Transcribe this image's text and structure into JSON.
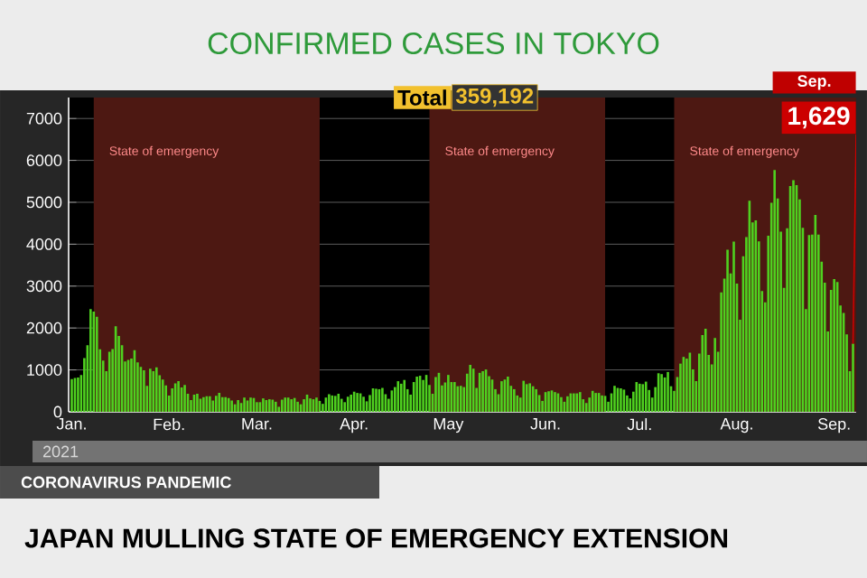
{
  "chart_data": {
    "type": "bar",
    "title": "CONFIRMED CASES IN TOKYO",
    "subtitle": "JAPAN MULLING STATE OF EMERGENCY EXTENSION",
    "annotations": [
      "Total",
      "359,192",
      "Sep.",
      {
        "text": "1,629",
        "x": "2021-09-07",
        "y": 1629
      },
      "2021",
      "CORONAVIRUS PANDEMIC"
    ],
    "color": "#4fd11f",
    "x": [
      "2021-01-01",
      "2021-01-02",
      "2021-01-03",
      "2021-01-04",
      "2021-01-05",
      "2021-01-06",
      "2021-01-07",
      "2021-01-08",
      "2021-01-09",
      "2021-01-10",
      "2021-01-11",
      "2021-01-12",
      "2021-01-13",
      "2021-01-14",
      "2021-01-15",
      "2021-01-16",
      "2021-01-17",
      "2021-01-18",
      "2021-01-19",
      "2021-01-20",
      "2021-01-21",
      "2021-01-22",
      "2021-01-23",
      "2021-01-24",
      "2021-01-25",
      "2021-01-26",
      "2021-01-27",
      "2021-01-28",
      "2021-01-29",
      "2021-01-30",
      "2021-01-31",
      "2021-02-01",
      "2021-02-02",
      "2021-02-03",
      "2021-02-04",
      "2021-02-05",
      "2021-02-06",
      "2021-02-07",
      "2021-02-08",
      "2021-02-09",
      "2021-02-10",
      "2021-02-11",
      "2021-02-12",
      "2021-02-13",
      "2021-02-14",
      "2021-02-15",
      "2021-02-16",
      "2021-02-17",
      "2021-02-18",
      "2021-02-19",
      "2021-02-20",
      "2021-02-21",
      "2021-02-22",
      "2021-02-23",
      "2021-02-24",
      "2021-02-25",
      "2021-02-26",
      "2021-02-27",
      "2021-02-28",
      "2021-03-01",
      "2021-03-02",
      "2021-03-03",
      "2021-03-04",
      "2021-03-05",
      "2021-03-06",
      "2021-03-07",
      "2021-03-08",
      "2021-03-09",
      "2021-03-10",
      "2021-03-11",
      "2021-03-12",
      "2021-03-13",
      "2021-03-14",
      "2021-03-15",
      "2021-03-16",
      "2021-03-17",
      "2021-03-18",
      "2021-03-19",
      "2021-03-20",
      "2021-03-21",
      "2021-03-22",
      "2021-03-23",
      "2021-03-24",
      "2021-03-25",
      "2021-03-26",
      "2021-03-27",
      "2021-03-28",
      "2021-03-29",
      "2021-03-30",
      "2021-03-31",
      "2021-04-01",
      "2021-04-02",
      "2021-04-03",
      "2021-04-04",
      "2021-04-05",
      "2021-04-06",
      "2021-04-07",
      "2021-04-08",
      "2021-04-09",
      "2021-04-10",
      "2021-04-11",
      "2021-04-12",
      "2021-04-13",
      "2021-04-14",
      "2021-04-15",
      "2021-04-16",
      "2021-04-17",
      "2021-04-18",
      "2021-04-19",
      "2021-04-20",
      "2021-04-21",
      "2021-04-22",
      "2021-04-23",
      "2021-04-24",
      "2021-04-25",
      "2021-04-26",
      "2021-04-27",
      "2021-04-28",
      "2021-04-29",
      "2021-04-30",
      "2021-05-01",
      "2021-05-02",
      "2021-05-03",
      "2021-05-04",
      "2021-05-05",
      "2021-05-06",
      "2021-05-07",
      "2021-05-08",
      "2021-05-09",
      "2021-05-10",
      "2021-05-11",
      "2021-05-12",
      "2021-05-13",
      "2021-05-14",
      "2021-05-15",
      "2021-05-16",
      "2021-05-17",
      "2021-05-18",
      "2021-05-19",
      "2021-05-20",
      "2021-05-21",
      "2021-05-22",
      "2021-05-23",
      "2021-05-24",
      "2021-05-25",
      "2021-05-26",
      "2021-05-27",
      "2021-05-28",
      "2021-05-29",
      "2021-05-30",
      "2021-05-31",
      "2021-06-01",
      "2021-06-02",
      "2021-06-03",
      "2021-06-04",
      "2021-06-05",
      "2021-06-06",
      "2021-06-07",
      "2021-06-08",
      "2021-06-09",
      "2021-06-10",
      "2021-06-11",
      "2021-06-12",
      "2021-06-13",
      "2021-06-14",
      "2021-06-15",
      "2021-06-16",
      "2021-06-17",
      "2021-06-18",
      "2021-06-19",
      "2021-06-20",
      "2021-06-21",
      "2021-06-22",
      "2021-06-23",
      "2021-06-24",
      "2021-06-25",
      "2021-06-26",
      "2021-06-27",
      "2021-06-28",
      "2021-06-29",
      "2021-06-30",
      "2021-07-01",
      "2021-07-02",
      "2021-07-03",
      "2021-07-04",
      "2021-07-05",
      "2021-07-06",
      "2021-07-07",
      "2021-07-08",
      "2021-07-09",
      "2021-07-10",
      "2021-07-11",
      "2021-07-12",
      "2021-07-13",
      "2021-07-14",
      "2021-07-15",
      "2021-07-16",
      "2021-07-17",
      "2021-07-18",
      "2021-07-19",
      "2021-07-20",
      "2021-07-21",
      "2021-07-22",
      "2021-07-23",
      "2021-07-24",
      "2021-07-25",
      "2021-07-26",
      "2021-07-27",
      "2021-07-28",
      "2021-07-29",
      "2021-07-30",
      "2021-07-31",
      "2021-08-01",
      "2021-08-02",
      "2021-08-03",
      "2021-08-04",
      "2021-08-05",
      "2021-08-06",
      "2021-08-07",
      "2021-08-08",
      "2021-08-09",
      "2021-08-10",
      "2021-08-11",
      "2021-08-12",
      "2021-08-13",
      "2021-08-14",
      "2021-08-15",
      "2021-08-16",
      "2021-08-17",
      "2021-08-18",
      "2021-08-19",
      "2021-08-20",
      "2021-08-21",
      "2021-08-22",
      "2021-08-23",
      "2021-08-24",
      "2021-08-25",
      "2021-08-26",
      "2021-08-27",
      "2021-08-28",
      "2021-08-29",
      "2021-08-30",
      "2021-08-31",
      "2021-09-01",
      "2021-09-02",
      "2021-09-03",
      "2021-09-04",
      "2021-09-05",
      "2021-09-06",
      "2021-09-07"
    ],
    "values": [
      780,
      810,
      820,
      880,
      1280,
      1590,
      2450,
      2390,
      2270,
      1490,
      1220,
      970,
      1430,
      1500,
      2040,
      1810,
      1590,
      1200,
      1240,
      1270,
      1470,
      1180,
      1070,
      990,
      620,
      1030,
      970,
      1060,
      870,
      770,
      630,
      390,
      560,
      680,
      730,
      580,
      640,
      430,
      280,
      410,
      430,
      310,
      350,
      370,
      370,
      270,
      380,
      450,
      350,
      350,
      330,
      270,
      180,
      280,
      210,
      340,
      270,
      340,
      330,
      230,
      230,
      320,
      280,
      300,
      290,
      240,
      120,
      290,
      340,
      340,
      300,
      330,
      240,
      180,
      300,
      410,
      320,
      300,
      340,
      260,
      190,
      340,
      420,
      390,
      380,
      430,
      310,
      230,
      360,
      410,
      480,
      450,
      440,
      360,
      250,
      400,
      560,
      550,
      540,
      570,
      420,
      310,
      510,
      590,
      730,
      670,
      760,
      540,
      410,
      710,
      840,
      860,
      760,
      880,
      640,
      430,
      830,
      930,
      630,
      700,
      880,
      710,
      710,
      610,
      620,
      590,
      910,
      1120,
      1030,
      570,
      930,
      970,
      1010,
      850,
      770,
      540,
      420,
      730,
      770,
      840,
      620,
      540,
      390,
      340,
      740,
      660,
      680,
      610,
      540,
      400,
      260,
      470,
      490,
      510,
      470,
      440,
      350,
      240,
      370,
      440,
      440,
      440,
      470,
      300,
      210,
      340,
      500,
      450,
      450,
      390,
      380,
      240,
      440,
      620,
      570,
      560,
      530,
      390,
      320,
      480,
      710,
      670,
      660,
      720,
      520,
      340,
      590,
      920,
      900,
      820,
      950,
      610,
      500,
      830,
      1150,
      1310,
      1270,
      1410,
      1010,
      730,
      1390,
      1830,
      1980,
      1360,
      1130,
      1760,
      1430,
      2850,
      3180,
      3870,
      3300,
      4060,
      3060,
      2200,
      3710,
      4170,
      5040,
      4520,
      4570,
      4070,
      2880,
      2610,
      4200,
      4990,
      5770,
      5090,
      4300,
      2960,
      4380,
      5390,
      5530,
      5410,
      5070,
      4390,
      2450,
      4220,
      4230,
      4700,
      4230,
      3580,
      3080,
      1920,
      2910,
      3170,
      3100,
      2540,
      2360,
      1850,
      970,
      1629
    ],
    "xlim": [
      "2020-12-31",
      "2021-09-08"
    ],
    "xticks": [
      {
        "value": "2021-01-01",
        "label": "Jan."
      },
      {
        "value": "2021-02-01",
        "label": "Feb."
      },
      {
        "value": "2021-03-01",
        "label": "Mar."
      },
      {
        "value": "2021-04-01",
        "label": "Apr."
      },
      {
        "value": "2021-05-01",
        "label": "May"
      },
      {
        "value": "2021-06-01",
        "label": "Jun."
      },
      {
        "value": "2021-07-01",
        "label": "Jul."
      },
      {
        "value": "2021-08-01",
        "label": "Aug."
      },
      {
        "value": "2021-09-01",
        "label": "Sep."
      }
    ],
    "ylim": [
      0,
      7500
    ],
    "yticks": [
      0,
      1000,
      2000,
      3000,
      4000,
      5000,
      6000,
      7000
    ],
    "grid": "y",
    "bands": [
      {
        "axis": "x",
        "from": "2021-01-08",
        "to": "2021-03-21",
        "label": "State of emergency",
        "color": "#4d1812"
      },
      {
        "axis": "x",
        "from": "2021-04-25",
        "to": "2021-06-20",
        "label": "State of emergency",
        "color": "#4d1812"
      },
      {
        "axis": "x",
        "from": "2021-07-12",
        "to": "2021-09-08",
        "label": "State of emergency",
        "color": "#4d1812"
      }
    ]
  }
}
